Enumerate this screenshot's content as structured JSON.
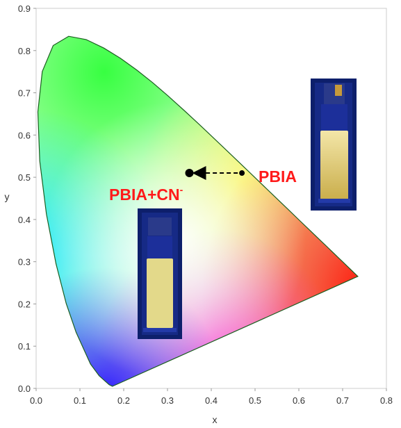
{
  "chart_data": {
    "type": "scatter",
    "title": "",
    "xlabel": "x",
    "ylabel": "y",
    "xlim": [
      0.0,
      0.8
    ],
    "ylim": [
      0.0,
      0.9
    ],
    "grid": false,
    "x_ticks": [
      "0.0",
      "0.1",
      "0.2",
      "0.3",
      "0.4",
      "0.5",
      "0.6",
      "0.7",
      "0.8"
    ],
    "y_ticks": [
      "0.0",
      "0.1",
      "0.2",
      "0.3",
      "0.4",
      "0.5",
      "0.6",
      "0.7",
      "0.8",
      "0.9"
    ],
    "points": [
      {
        "name": "PBIA+CN-",
        "x": 0.35,
        "y": 0.51
      },
      {
        "name": "PBIA",
        "x": 0.47,
        "y": 0.51
      }
    ],
    "arrow": {
      "from": "PBIA",
      "to": "PBIA+CN-"
    },
    "annotations": {
      "pbia": "PBIA",
      "pbia_cn_base": "PBIA+CN",
      "pbia_cn_sup": "-"
    },
    "colors": {
      "label": "#ff1a1a",
      "point": "#000000",
      "vial_glow": "#e8d27a",
      "vial_bg": "#0d1f6b"
    },
    "photos": [
      "PBIA vial under UV light",
      "PBIA+CN- vial under UV light"
    ]
  }
}
